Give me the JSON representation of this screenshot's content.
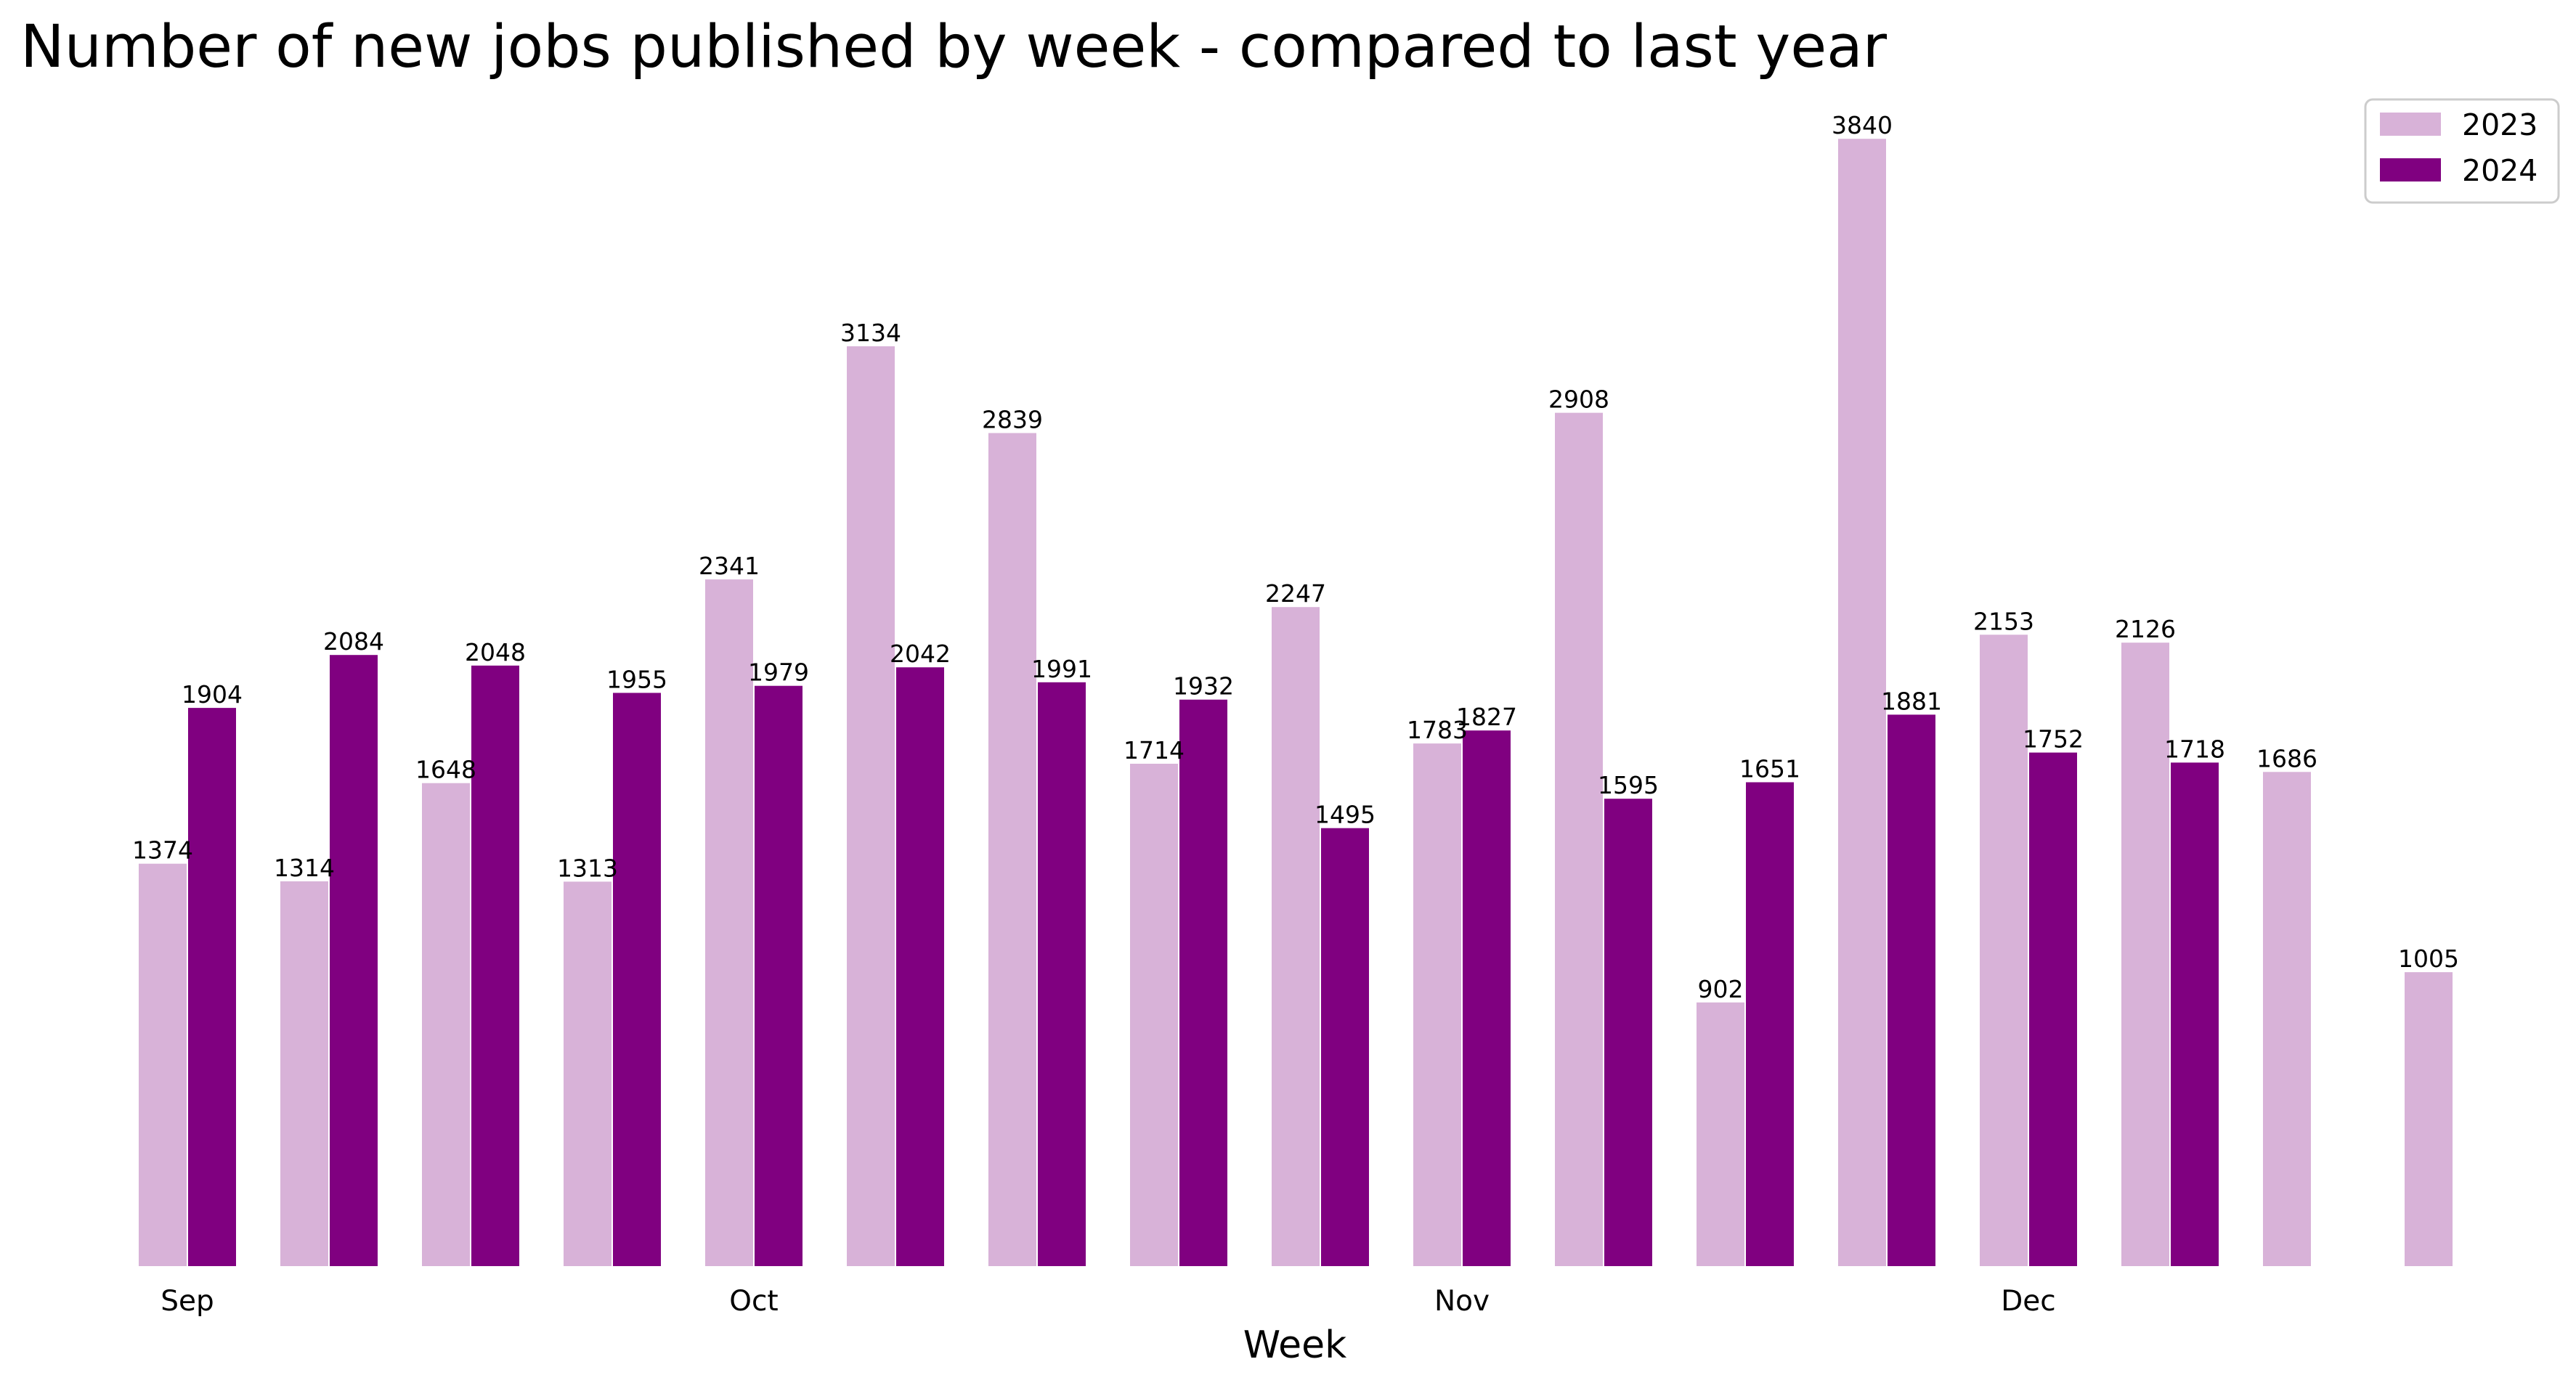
{
  "chart_data": {
    "type": "bar",
    "title": "Number of new jobs published by week - compared to last year",
    "xlabel": "Week",
    "ylabel": "",
    "ylim": [
      0,
      4000
    ],
    "grid": false,
    "legend_position": "top-right",
    "tick_labels": [
      {
        "index": 0,
        "label": "Sep"
      },
      {
        "index": 4,
        "label": "Oct"
      },
      {
        "index": 9,
        "label": "Nov"
      },
      {
        "index": 13,
        "label": "Dec"
      }
    ],
    "series": [
      {
        "name": "2023",
        "color": "#d8b2d8",
        "values": [
          1374,
          1314,
          1648,
          1313,
          2341,
          3134,
          2839,
          1714,
          2247,
          1783,
          2908,
          902,
          3840,
          2153,
          2126,
          1686,
          1005
        ]
      },
      {
        "name": "2024",
        "color": "#800080",
        "values": [
          1904,
          2084,
          2048,
          1955,
          1979,
          2042,
          1991,
          1932,
          1495,
          1827,
          1595,
          1651,
          1881,
          1752,
          1718,
          null,
          null
        ]
      }
    ]
  }
}
